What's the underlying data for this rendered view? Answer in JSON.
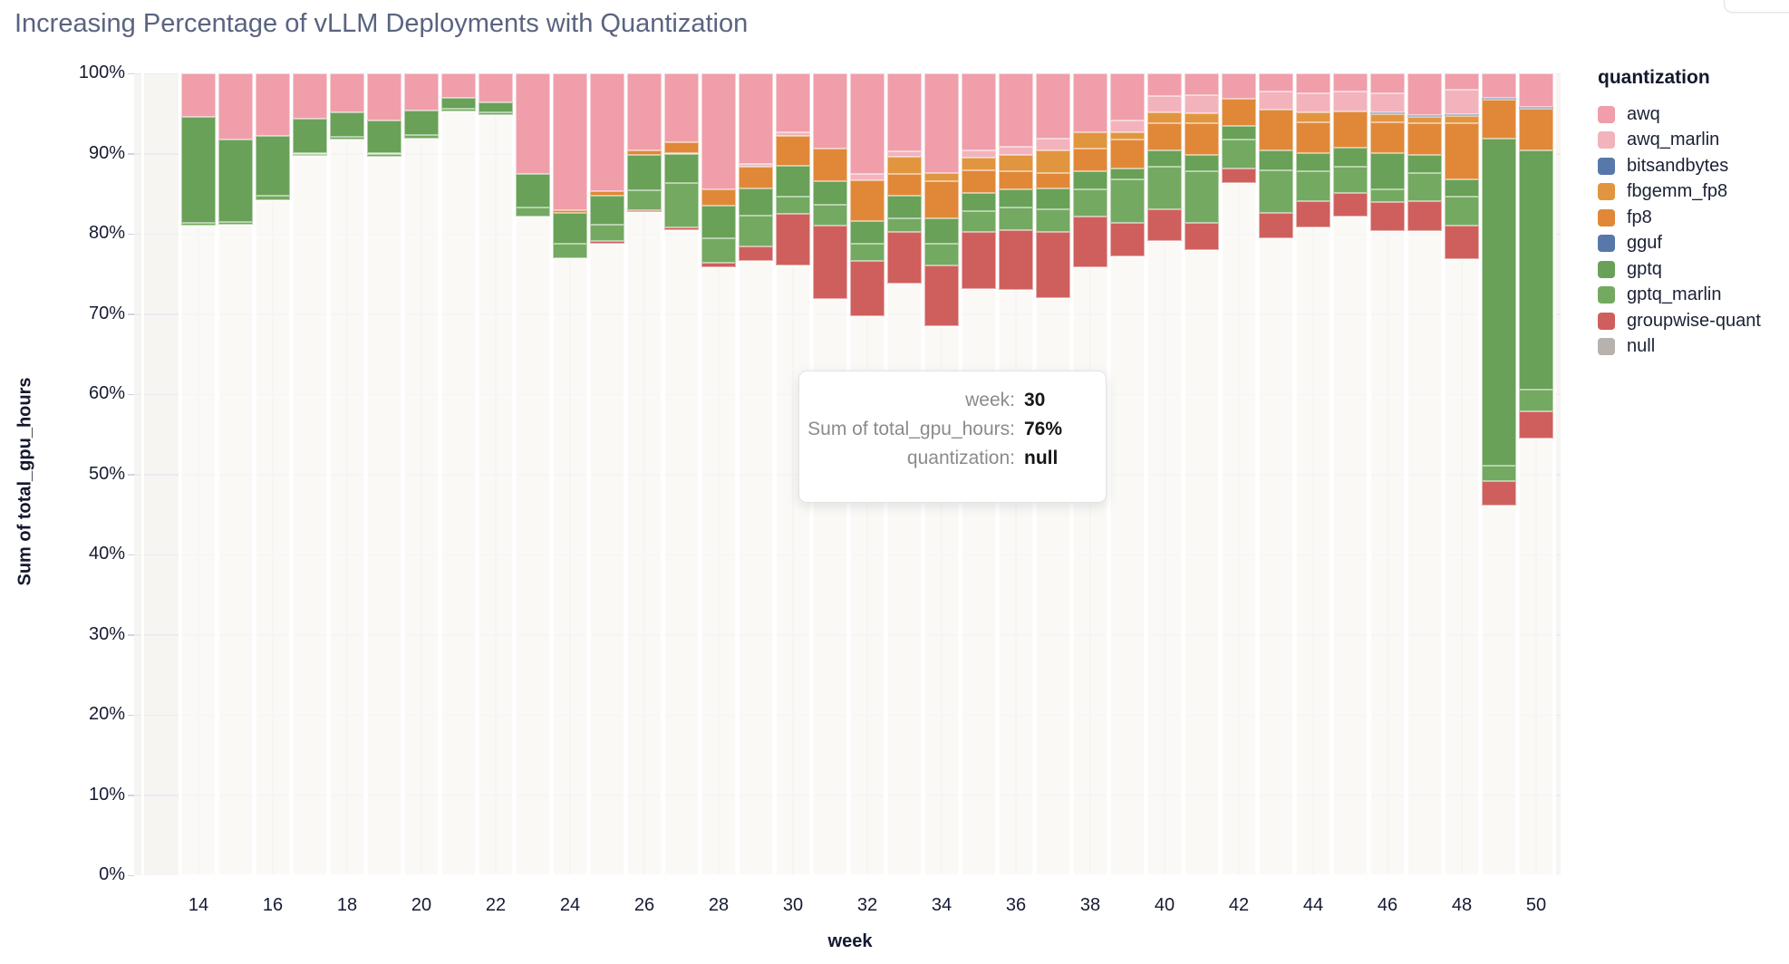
{
  "header": {
    "title": "Increasing Percentage of vLLM Deployments with Quantization"
  },
  "legend": {
    "title": "quantization"
  },
  "tooltip": {
    "rows": [
      {
        "label": "week:",
        "value": "30"
      },
      {
        "label": "Sum of total_gpu_hours:",
        "value": "76%"
      },
      {
        "label": "quantization:",
        "value": "null"
      }
    ]
  },
  "chart_data": {
    "type": "bar",
    "variant": "normalized-stacked-vertical",
    "title": "Increasing Percentage of vLLM Deployments with Quantization",
    "xlabel": "week",
    "ylabel": "Sum of total_gpu_hours",
    "ylim": [
      0,
      100
    ],
    "y_tick_labels": [
      "0%",
      "10%",
      "20%",
      "30%",
      "40%",
      "50%",
      "60%",
      "70%",
      "80%",
      "90%",
      "100%"
    ],
    "x_tick_labels": [
      14,
      16,
      18,
      20,
      22,
      24,
      26,
      28,
      30,
      32,
      34,
      36,
      38,
      40,
      42,
      44,
      46,
      48,
      50
    ],
    "grid": true,
    "legend_position": "right",
    "legend_entries": [
      "awq",
      "awq_marlin",
      "bitsandbytes",
      "fbgemm_fp8",
      "fp8",
      "gguf",
      "gptq",
      "gptq_marlin",
      "groupwise-quant",
      "null"
    ],
    "stack_order_bottom_to_top": [
      "null",
      "groupwise-quant",
      "gptq_marlin",
      "gptq",
      "gguf",
      "fp8",
      "fbgemm_fp8",
      "bitsandbytes",
      "awq_marlin",
      "awq"
    ],
    "colors": {
      "awq": "#EF9EAA",
      "awq_marlin": "#F2B3BC",
      "bitsandbytes": "#5878A9",
      "fbgemm_fp8": "#E2953F",
      "fp8": "#E08838",
      "gguf": "#5878A9",
      "gptq": "#68A157",
      "gptq_marlin": "#74A961",
      "groupwise-quant": "#CF5F5C",
      "null": "#B7B2AE"
    },
    "null_bar_fill": "rgba(252,250,247,0.65)",
    "weeks": [
      14,
      15,
      16,
      17,
      18,
      19,
      20,
      21,
      22,
      23,
      24,
      25,
      26,
      27,
      28,
      29,
      30,
      31,
      32,
      33,
      34,
      35,
      36,
      37,
      38,
      39,
      40,
      41,
      42,
      43,
      44,
      45,
      46,
      47,
      48,
      49,
      50
    ],
    "series": [
      {
        "name": "null",
        "values": [
          81.0,
          81.1,
          84.2,
          89.7,
          91.8,
          89.6,
          91.9,
          95.3,
          94.8,
          82.1,
          76.9,
          78.8,
          82.7,
          80.5,
          75.8,
          76.6,
          76.0,
          71.9,
          69.7,
          73.8,
          68.5,
          73.1,
          73.0,
          72.0,
          75.8,
          77.2,
          79.1,
          78.0,
          86.3,
          79.4,
          80.8,
          82.1,
          80.3,
          80.3,
          76.8,
          46.1,
          54.5
        ]
      },
      {
        "name": "groupwise-quant",
        "values": [
          0,
          0,
          0,
          0,
          0,
          0,
          0,
          0,
          0,
          0,
          0,
          0.3,
          0.2,
          0.3,
          0.6,
          1.8,
          6.5,
          9.1,
          6.9,
          6.4,
          7.5,
          7.1,
          7.4,
          8.2,
          6.3,
          4.2,
          4.0,
          3.4,
          1.8,
          3.2,
          3.3,
          3.0,
          3.7,
          3.8,
          4.2,
          3.1,
          3.4
        ]
      },
      {
        "name": "gptq_marlin",
        "values": [
          0.4,
          0.4,
          0.6,
          0.3,
          0.3,
          0.4,
          0.4,
          0.3,
          0.3,
          1.2,
          1.9,
          2.0,
          2.5,
          5.5,
          3.0,
          3.9,
          2.1,
          2.6,
          2.2,
          1.7,
          2.8,
          2.6,
          2.9,
          2.8,
          3.4,
          5.4,
          5.3,
          6.4,
          3.7,
          5.3,
          3.7,
          3.3,
          1.5,
          3.5,
          3.6,
          1.9,
          2.7
        ]
      },
      {
        "name": "gptq",
        "values": [
          13.2,
          10.3,
          7.4,
          4.4,
          3.0,
          4.1,
          3.1,
          1.3,
          1.3,
          4.2,
          3.8,
          3.6,
          4.4,
          3.7,
          4.1,
          3.4,
          3.9,
          3.0,
          2.8,
          2.8,
          3.1,
          2.3,
          2.2,
          2.7,
          2.3,
          1.3,
          2.0,
          2.0,
          1.6,
          2.5,
          2.3,
          2.3,
          4.6,
          2.2,
          2.2,
          40.8,
          29.8
        ]
      },
      {
        "name": "gguf",
        "values": [
          0,
          0,
          0,
          0,
          0,
          0,
          0,
          0,
          0,
          0,
          0,
          0,
          0,
          0,
          0,
          0,
          0,
          0,
          0,
          0,
          0,
          0,
          0,
          0,
          0,
          0,
          0,
          0,
          0,
          0,
          0,
          0,
          0,
          0,
          0,
          0,
          0
        ]
      },
      {
        "name": "fp8",
        "values": [
          0,
          0,
          0,
          0,
          0,
          0,
          0,
          0,
          0,
          0,
          0.3,
          0.6,
          0.6,
          1.4,
          2.0,
          2.7,
          3.7,
          4.0,
          5.1,
          2.8,
          4.7,
          2.8,
          2.3,
          1.9,
          2.8,
          3.7,
          3.4,
          4.0,
          3.4,
          5.1,
          3.8,
          4.6,
          3.8,
          4.0,
          7.0,
          4.8,
          5.2
        ]
      },
      {
        "name": "fbgemm_fp8",
        "values": [
          0,
          0,
          0,
          0,
          0,
          0,
          0,
          0,
          0,
          0,
          0,
          0,
          0,
          0,
          0,
          0,
          0,
          0,
          0,
          2.1,
          1.0,
          1.6,
          2.0,
          2.8,
          2.1,
          0.9,
          1.3,
          1.2,
          0,
          0,
          1.2,
          0,
          1.0,
          0.8,
          0.9,
          0,
          0
        ]
      },
      {
        "name": "bitsandbytes",
        "values": [
          0,
          0,
          0,
          0,
          0,
          0,
          0,
          0,
          0,
          0,
          0,
          0,
          0,
          0,
          0,
          0,
          0,
          0,
          0,
          0,
          0,
          0,
          0,
          0,
          0,
          0,
          0,
          0,
          0,
          0,
          0,
          0,
          0.2,
          0.2,
          0.2,
          0.2,
          0.2
        ]
      },
      {
        "name": "awq_marlin",
        "values": [
          0,
          0,
          0,
          0,
          0,
          0,
          0,
          0,
          0,
          0,
          0,
          0,
          0,
          0,
          0,
          0.3,
          0.5,
          0,
          0.8,
          0.7,
          0,
          0.9,
          1.0,
          1.5,
          0,
          1.4,
          2.1,
          2.3,
          0,
          2.2,
          2.4,
          2.4,
          2.4,
          0,
          3.1,
          0,
          0
        ]
      },
      {
        "name": "awq",
        "values": [
          5.4,
          8.2,
          7.8,
          5.6,
          4.9,
          5.9,
          4.6,
          3.1,
          3.6,
          12.5,
          17.1,
          14.7,
          9.6,
          8.6,
          14.5,
          11.3,
          7.3,
          9.4,
          12.5,
          9.7,
          12.4,
          9.6,
          9.2,
          8.1,
          7.3,
          5.9,
          2.8,
          2.7,
          3.2,
          2.3,
          2.5,
          2.3,
          2.5,
          5.2,
          2.0,
          3.1,
          4.2
        ]
      }
    ]
  }
}
